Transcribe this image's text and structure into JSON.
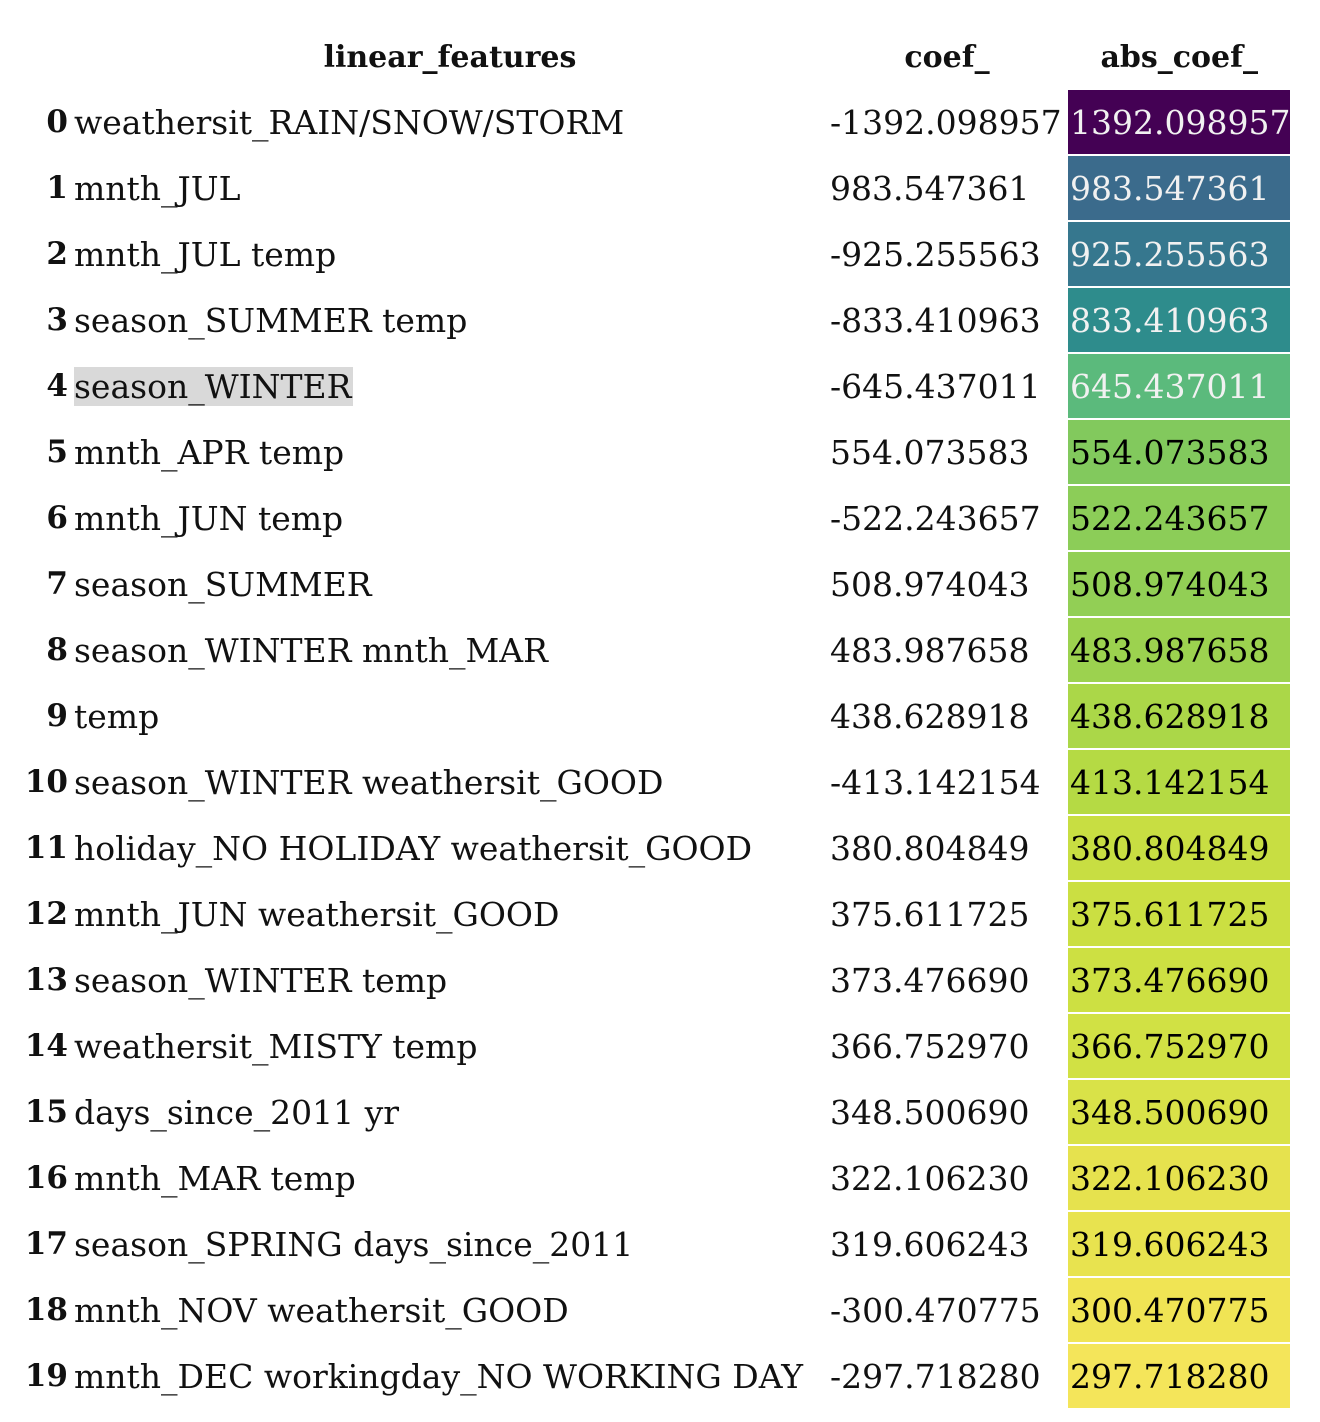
{
  "columns": [
    "linear_features",
    "coef_",
    "abs_coef_"
  ],
  "rows": [
    {
      "index": "0",
      "feature": "weathersit_RAIN/SNOW/STORM",
      "coef": "-1392.098957",
      "abs": "1392.098957",
      "bg": "#440154",
      "fg": "#f1f1f1"
    },
    {
      "index": "1",
      "feature": "mnth_JUL",
      "coef": "983.547361",
      "abs": "983.547361",
      "bg": "#3b6b8c",
      "fg": "#f1f1f1"
    },
    {
      "index": "2",
      "feature": "mnth_JUL temp",
      "coef": "-925.255563",
      "abs": "925.255563",
      "bg": "#36778e",
      "fg": "#f1f1f1"
    },
    {
      "index": "3",
      "feature": "season_SUMMER temp",
      "coef": "-833.410963",
      "abs": "833.410963",
      "bg": "#2e8c8c",
      "fg": "#f1f1f1"
    },
    {
      "index": "4",
      "feature": "season_WINTER",
      "coef": "-645.437011",
      "abs": "645.437011",
      "bg": "#5bba7c",
      "fg": "#f1f1f1",
      "highlight": true
    },
    {
      "index": "5",
      "feature": "mnth_APR temp",
      "coef": "554.073583",
      "abs": "554.073583",
      "bg": "#82c95d",
      "fg": "#000000"
    },
    {
      "index": "6",
      "feature": "mnth_JUN temp",
      "coef": "-522.243657",
      "abs": "522.243657",
      "bg": "#8ccd58",
      "fg": "#000000"
    },
    {
      "index": "7",
      "feature": "season_SUMMER",
      "coef": "508.974043",
      "abs": "508.974043",
      "bg": "#92cf55",
      "fg": "#000000"
    },
    {
      "index": "8",
      "feature": "season_WINTER mnth_MAR",
      "coef": "483.987658",
      "abs": "483.987658",
      "bg": "#9cd24f",
      "fg": "#000000"
    },
    {
      "index": "9",
      "feature": "temp",
      "coef": "438.628918",
      "abs": "438.628918",
      "bg": "#abd748",
      "fg": "#000000"
    },
    {
      "index": "10",
      "feature": "season_WINTER weathersit_GOOD",
      "coef": "-413.142154",
      "abs": "413.142154",
      "bg": "#b5da44",
      "fg": "#000000"
    },
    {
      "index": "11",
      "feature": "holiday_NO HOLIDAY weathersit_GOOD",
      "coef": "380.804849",
      "abs": "380.804849",
      "bg": "#c8de42",
      "fg": "#000000"
    },
    {
      "index": "12",
      "feature": "mnth_JUN weathersit_GOOD",
      "coef": "375.611725",
      "abs": "375.611725",
      "bg": "#cbdf42",
      "fg": "#000000"
    },
    {
      "index": "13",
      "feature": "season_WINTER temp",
      "coef": "373.476690",
      "abs": "373.476690",
      "bg": "#cde042",
      "fg": "#000000"
    },
    {
      "index": "14",
      "feature": "weathersit_MISTY temp",
      "coef": "366.752970",
      "abs": "366.752970",
      "bg": "#d1e144",
      "fg": "#000000"
    },
    {
      "index": "15",
      "feature": "days_since_2011 yr",
      "coef": "348.500690",
      "abs": "348.500690",
      "bg": "#d9e248",
      "fg": "#000000"
    },
    {
      "index": "16",
      "feature": "mnth_MAR temp",
      "coef": "322.106230",
      "abs": "322.106230",
      "bg": "#e6e24e",
      "fg": "#000000"
    },
    {
      "index": "17",
      "feature": "season_SPRING days_since_2011",
      "coef": "319.606243",
      "abs": "319.606243",
      "bg": "#e8e34f",
      "fg": "#000000"
    },
    {
      "index": "18",
      "feature": "mnth_NOV weathersit_GOOD",
      "coef": "-300.470775",
      "abs": "300.470775",
      "bg": "#f0e454",
      "fg": "#000000"
    },
    {
      "index": "19",
      "feature": "mnth_DEC workingday_NO WORKING DAY",
      "coef": "-297.718280",
      "abs": "297.718280",
      "bg": "#f4e55a",
      "fg": "#000000"
    }
  ]
}
